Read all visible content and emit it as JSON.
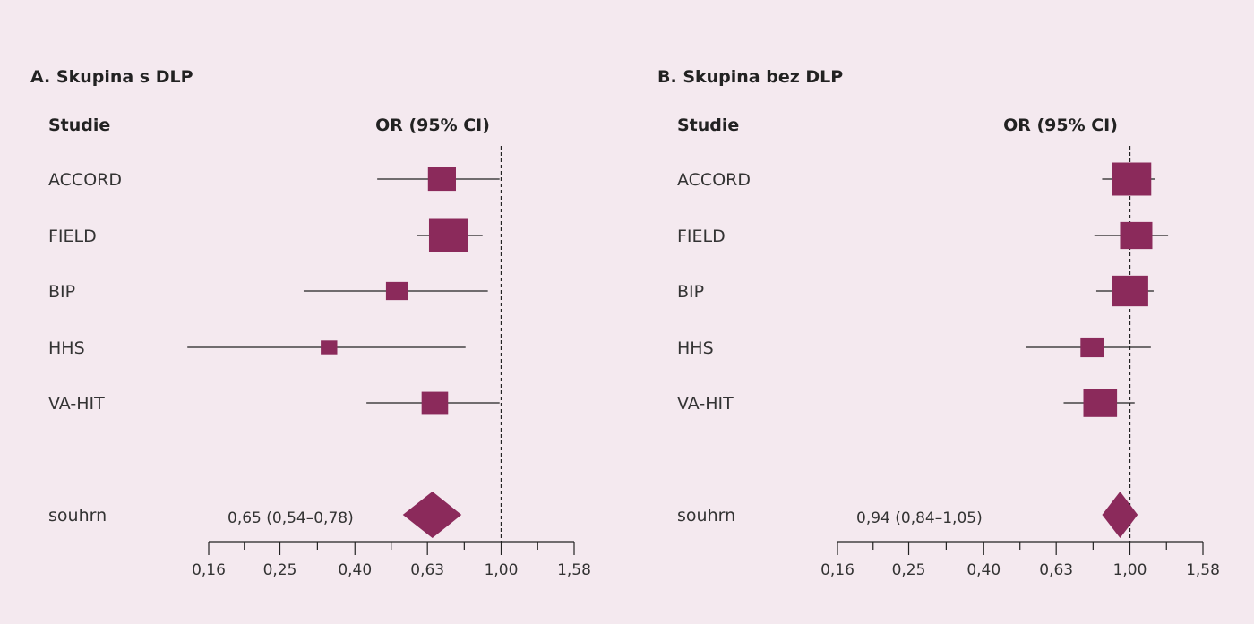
{
  "chart_data": [
    {
      "type": "forest",
      "title": "A. Skupina s DLP",
      "study_header": "Studie",
      "effect_header": "OR (95% CI)",
      "x_scale": "log",
      "xlim": [
        0.16,
        1.58
      ],
      "ticks": [
        "0,16",
        "0,25",
        "0,40",
        "0,63",
        "1,00",
        "1,58"
      ],
      "tick_values": [
        0.16,
        0.25,
        0.4,
        0.63,
        1.0,
        1.58
      ],
      "reference_line": 1.0,
      "studies": [
        {
          "name": "ACCORD",
          "or": 0.69,
          "lo": 0.46,
          "hi": 0.99,
          "weight": 0.6
        },
        {
          "name": "FIELD",
          "or": 0.72,
          "lo": 0.59,
          "hi": 0.89,
          "weight": 1.0
        },
        {
          "name": "BIP",
          "or": 0.52,
          "lo": 0.29,
          "hi": 0.92,
          "weight": 0.38
        },
        {
          "name": "HHS",
          "or": 0.34,
          "lo": 0.14,
          "hi": 0.8,
          "weight": 0.2
        },
        {
          "name": "VA-HIT",
          "or": 0.66,
          "lo": 0.43,
          "hi": 0.99,
          "weight": 0.55
        }
      ],
      "summary": {
        "label": "souhrn",
        "text": "0,65 (0,54–0,78)",
        "or": 0.65,
        "lo": 0.54,
        "hi": 0.78
      }
    },
    {
      "type": "forest",
      "title": "B. Skupina bez DLP",
      "study_header": "Studie",
      "effect_header": "OR (95% CI)",
      "x_scale": "log",
      "xlim": [
        0.16,
        1.58
      ],
      "ticks": [
        "0,16",
        "0,25",
        "0,40",
        "0,63",
        "1,00",
        "1,58"
      ],
      "tick_values": [
        0.16,
        0.25,
        0.4,
        0.63,
        1.0,
        1.58
      ],
      "reference_line": 1.0,
      "studies": [
        {
          "name": "ACCORD",
          "or": 1.01,
          "lo": 0.84,
          "hi": 1.17,
          "weight": 1.0
        },
        {
          "name": "FIELD",
          "or": 1.04,
          "lo": 0.8,
          "hi": 1.27,
          "weight": 0.75
        },
        {
          "name": "BIP",
          "or": 1.0,
          "lo": 0.81,
          "hi": 1.16,
          "weight": 0.9
        },
        {
          "name": "HHS",
          "or": 0.79,
          "lo": 0.52,
          "hi": 1.14,
          "weight": 0.45
        },
        {
          "name": "VA-HIT",
          "or": 0.83,
          "lo": 0.66,
          "hi": 1.03,
          "weight": 0.8
        }
      ],
      "summary": {
        "label": "souhrn",
        "text": "0,94 (0,84–1,05)",
        "or": 0.94,
        "lo": 0.84,
        "hi": 1.05
      }
    }
  ],
  "colors": {
    "marker": "#8b2a5b",
    "line": "#222222",
    "background": "#f4e9ef"
  }
}
